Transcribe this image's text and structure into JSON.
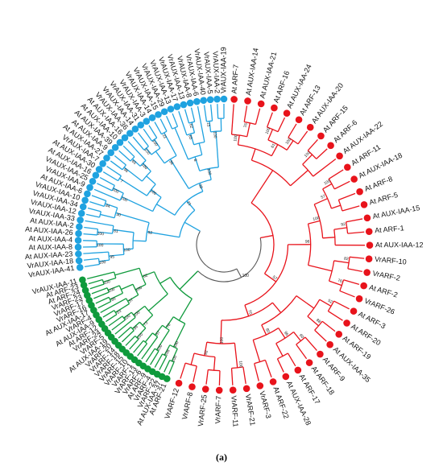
{
  "figure": {
    "panel_label": "(a)"
  },
  "colors": {
    "red": "#e8131b",
    "green": "#0f9a3c",
    "blue": "#1fa2e0",
    "root": "#555555"
  },
  "clades": {
    "red": [
      "At ARF-7",
      "At AUX-IAA-14",
      "At AUX-IAA-21",
      "At ARF-16",
      "At AUX-IAA-24",
      "At ARF-13",
      "At AUX-IAA-20",
      "At ARF-15",
      "At ARF-6",
      "At AUX-IAA-22",
      "At ARF-11",
      "At AUX-IAA-18",
      "At ARF-8",
      "At ARF-5",
      "At AUX-IAA-15",
      "At ARF-1",
      "At AUX-IAA-12",
      "VrARF-10",
      "VrARF-2",
      "At ARF-2",
      "VrARF-26",
      "At ARF-3",
      "At ARF-20",
      "At ARF-19",
      "At AUX-IAA-35",
      "At ARF-9",
      "At ARF-18",
      "At ARF-17",
      "At AUX-IAA-28",
      "At ARF-22",
      "VrARF-3",
      "VrARF-21",
      "VrARF-11",
      "VrARF-7",
      "VrARF-25",
      "VrARF-8",
      "VrARF-12"
    ],
    "green": [
      "At ARF-21",
      "At AUX-IAA-37",
      "VrARF-22",
      "VrARF-4",
      "At ARF-9",
      "VrARF-6",
      "VrARF-13",
      "VrARF-1",
      "VrARF-10",
      "VrARF-15",
      "VrARF-18",
      "VrARF-14",
      "VrARF-20",
      "At AUX-IAA-19",
      "VrARF-5",
      "VrARF-24",
      "At ARF-12",
      "At AUX-IAA-9",
      "VrARF-4",
      "At AUX-IAA-17",
      "VrARF-16",
      "VrARF-17",
      "VrARF-23",
      "At ARF-24",
      "At ARF-23",
      "VrAUX-IAA-11"
    ],
    "blue": [
      "VrAUX-IAA-41",
      "VrAUX-IAA-18",
      "At AUX-IAA-23",
      "At AUX-IAA-8",
      "At AUX-IAA-4",
      "At AUX-IAA-26",
      "At AUX-IAA-2",
      "VrAUX-IAA-33",
      "VrAUX-IAA-12",
      "VrAUX-IAA-34",
      "VrAUX-IAA-10",
      "At AUX-IAA-6",
      "VrAUX-IAA-9",
      "VrAUX-IAA-25",
      "At AUX-IAA-16",
      "At AUX-IAA-30",
      "VrAUX-IAA-7",
      "At AUX-IAA-27",
      "At AUX-IAA-9",
      "At AUX-IAA-39",
      "At AUX-IAA-10",
      "At AUX-IAA-16",
      "VrAUX-IAA-36",
      "VrAUX-IAA-14",
      "VrAUX-IAA-31",
      "VrAUX-IAA-3",
      "VrAUX-IAA-14",
      "VrAUX-IAA-15",
      "VrAUX-IAA-29",
      "VrAUX-IAA-13",
      "VrAUX-IAA-17",
      "VrAUX-IAA-13",
      "VrAUX-IAA-8",
      "VrAUX-IAA-6",
      "VrAUX-IAA-40",
      "VrAUX-IAA-5",
      "VrAUX-IAA-2",
      "VrAUX-IAA-19"
    ]
  },
  "bootstrap": {
    "red": [
      "100",
      "76",
      "100",
      "61",
      "100",
      "100",
      "100",
      "57",
      "100",
      "92",
      "96",
      "82",
      "76",
      "52",
      "57",
      "88",
      "60",
      "96",
      "80",
      "70",
      "100",
      "100",
      "92"
    ],
    "green": [
      "100",
      "100",
      "108",
      "100",
      "76",
      "87",
      "100",
      "73",
      "84",
      "100",
      "100",
      "53",
      "57",
      "100",
      "86",
      "100",
      "62",
      "100"
    ],
    "blue": [
      "100",
      "95",
      "100",
      "100",
      "100",
      "61",
      "92",
      "30",
      "84",
      "100",
      "100",
      "7",
      "100",
      "96",
      "65",
      "100",
      "21",
      "100",
      "100",
      "38",
      "23",
      "38",
      "8",
      "65",
      "62",
      "100",
      "15",
      "100"
    ],
    "root": "100"
  }
}
